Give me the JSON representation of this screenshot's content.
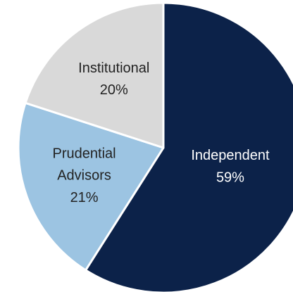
{
  "chart_data": {
    "type": "pie",
    "categories": [
      "Independent",
      "Prudential Advisors",
      "Institutional"
    ],
    "values": [
      59,
      21,
      20
    ],
    "value_labels": [
      "59%",
      "21%",
      "20%"
    ],
    "colors": [
      "#0c2249",
      "#9cc4e2",
      "#d9d9d9"
    ],
    "label_colors": [
      "#ffffff",
      "#222222",
      "#222222"
    ]
  }
}
